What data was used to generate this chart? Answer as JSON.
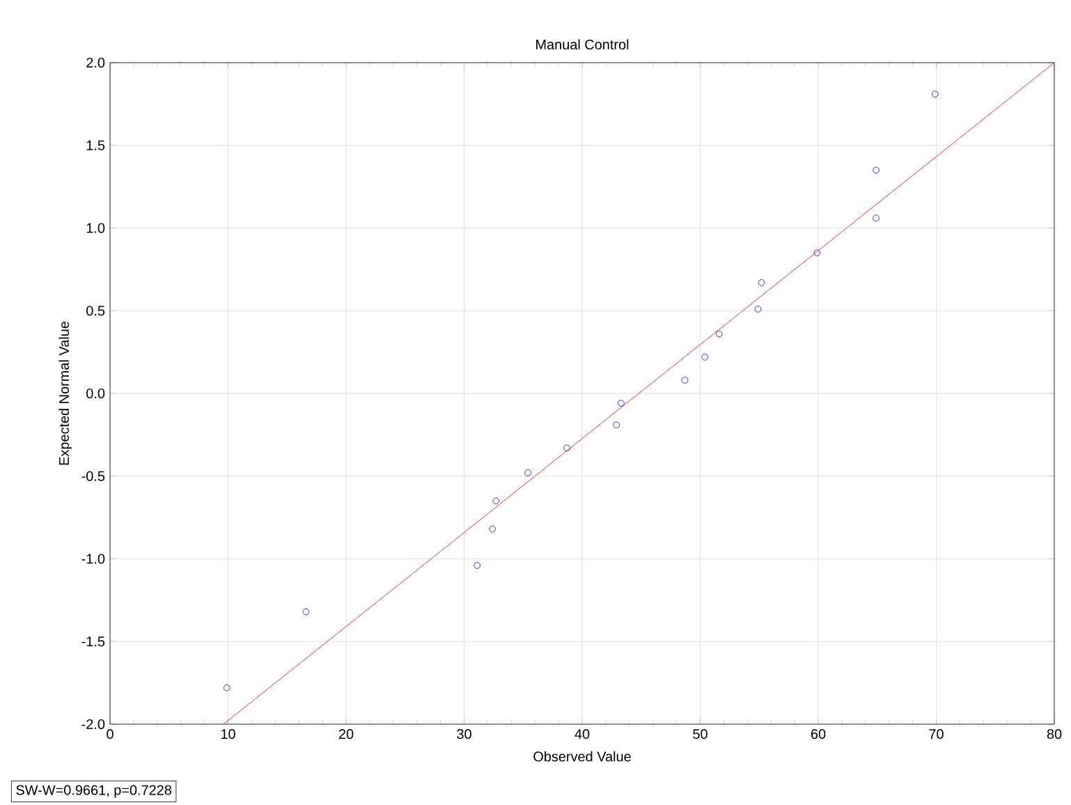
{
  "chart_data": {
    "type": "scatter",
    "title": "Manual Control",
    "xlabel": "Observed Value",
    "ylabel": "Expected Normal Value",
    "annotations": [
      "SW-W=0.9661, p=0.7228"
    ],
    "xlim": [
      0,
      80
    ],
    "ylim": [
      -2,
      2
    ],
    "xticks": [
      0,
      10,
      20,
      30,
      40,
      50,
      60,
      70,
      80
    ],
    "yticks": [
      {
        "value": -2,
        "label": "-2.0"
      },
      {
        "value": -1.5,
        "label": "-1.5"
      },
      {
        "value": -1,
        "label": "-1.0"
      },
      {
        "value": -0.5,
        "label": "-0.5"
      },
      {
        "value": 0,
        "label": "0.0"
      },
      {
        "value": 0.5,
        "label": "0.5"
      },
      {
        "value": 1,
        "label": "1.0"
      },
      {
        "value": 1.5,
        "label": "1.5"
      },
      {
        "value": 2,
        "label": "2.0"
      }
    ],
    "grid": true,
    "marker": "circle",
    "series": [
      {
        "color": "#0000ff",
        "x": [
          9.9,
          16.6,
          31.1,
          32.4,
          32.7,
          35.4,
          38.7,
          42.9,
          43.3,
          48.7,
          50.4,
          51.6,
          54.9,
          55.2,
          59.9,
          64.9,
          64.9,
          69.9
        ],
        "values": [
          -1.78,
          -1.32,
          -1.04,
          -0.82,
          -0.65,
          -0.48,
          -0.33,
          -0.19,
          -0.06,
          0.08,
          0.22,
          0.36,
          0.51,
          0.67,
          0.85,
          1.06,
          1.35,
          1.81
        ]
      },
      {
        "type": "line",
        "color": "#ff0000",
        "marker": "none",
        "line_style": "solid",
        "x": [
          9.6,
          80
        ],
        "values": [
          -2,
          2
        ]
      }
    ]
  }
}
